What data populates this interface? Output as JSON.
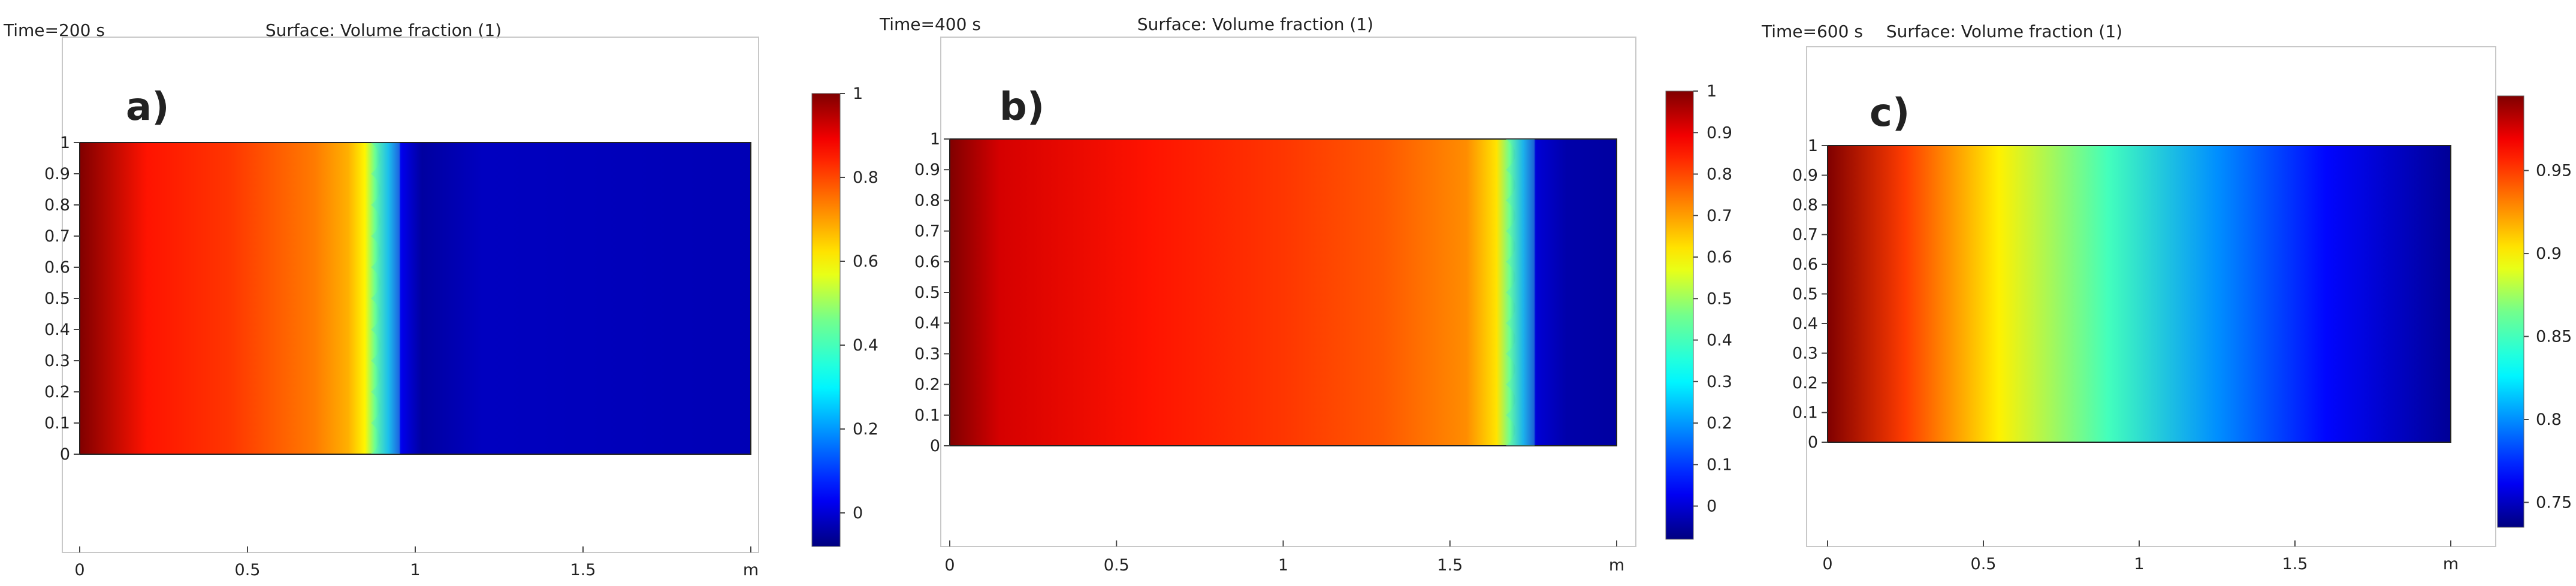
{
  "chart_data": [
    {
      "type": "heatmap",
      "panel_label": "a)",
      "time_label": "Time=200 s",
      "title": "Surface: Volume fraction (1)",
      "xticks": [
        "0",
        "0.5",
        "1",
        "1.5",
        "m"
      ],
      "yticks": [
        "0",
        "0.1",
        "0.2",
        "0.3",
        "0.4",
        "0.5",
        "0.6",
        "0.7",
        "0.8",
        "0.9",
        "1"
      ],
      "xlim": [
        0,
        2
      ],
      "ylim": [
        0,
        1
      ],
      "colorbar": {
        "range": [
          -0.08,
          1.0
        ],
        "ticks": [
          "1",
          "0.8",
          "0.6",
          "0.4",
          "0.2",
          "0"
        ],
        "tick_values": [
          1.0,
          0.8,
          0.6,
          0.4,
          0.2,
          0.0
        ],
        "colormap": "jet"
      },
      "field": {
        "x": [
          0.0,
          0.2,
          0.45,
          0.7,
          0.8,
          0.85,
          0.88,
          0.92,
          0.96,
          1.02,
          1.2,
          2.0
        ],
        "value": [
          1.0,
          0.86,
          0.82,
          0.74,
          0.68,
          0.6,
          0.45,
          0.22,
          0.02,
          -0.05,
          -0.02,
          -0.03
        ]
      },
      "front_x": 0.9
    },
    {
      "type": "heatmap",
      "panel_label": "b)",
      "time_label": "Time=400 s",
      "title": "Surface: Volume fraction (1)",
      "xticks": [
        "0",
        "0.5",
        "1",
        "1.5",
        "m"
      ],
      "yticks": [
        "0",
        "0.1",
        "0.2",
        "0.3",
        "0.4",
        "0.5",
        "0.6",
        "0.7",
        "0.8",
        "0.9",
        "1"
      ],
      "xlim": [
        0,
        2
      ],
      "ylim": [
        0,
        1
      ],
      "colorbar": {
        "range": [
          -0.08,
          1.0
        ],
        "ticks": [
          "1",
          "0.9",
          "0.8",
          "0.7",
          "0.6",
          "0.5",
          "0.4",
          "0.3",
          "0.2",
          "0.1",
          "0"
        ],
        "tick_values": [
          1.0,
          0.9,
          0.8,
          0.7,
          0.6,
          0.5,
          0.4,
          0.3,
          0.2,
          0.1,
          0.0
        ],
        "colormap": "jet"
      },
      "field": {
        "x": [
          0.0,
          0.15,
          0.6,
          1.0,
          1.3,
          1.55,
          1.64,
          1.68,
          1.72,
          1.76,
          1.85,
          2.0
        ],
        "value": [
          1.0,
          0.92,
          0.86,
          0.82,
          0.78,
          0.72,
          0.62,
          0.45,
          0.2,
          0.0,
          -0.04,
          -0.05
        ]
      },
      "front_x": 1.7
    },
    {
      "type": "heatmap",
      "panel_label": "c)",
      "time_label": "Time=600 s",
      "title": "Surface: Volume fraction (1)",
      "xticks": [
        "0",
        "0.5",
        "1",
        "1.5",
        "m"
      ],
      "yticks": [
        "0",
        "0.1",
        "0.2",
        "0.3",
        "0.4",
        "0.5",
        "0.6",
        "0.7",
        "0.8",
        "0.9",
        "1"
      ],
      "xlim": [
        0,
        2
      ],
      "ylim": [
        0,
        1
      ],
      "colorbar": {
        "range": [
          0.735,
          0.995
        ],
        "ticks": [
          "0.95",
          "0.9",
          "0.85",
          "0.8",
          "0.75"
        ],
        "tick_values": [
          0.95,
          0.9,
          0.85,
          0.8,
          0.75
        ],
        "colormap": "jet"
      },
      "field": {
        "x": [
          0.0,
          0.25,
          0.55,
          0.9,
          1.25,
          1.6,
          2.0
        ],
        "value": [
          0.995,
          0.95,
          0.9,
          0.85,
          0.8,
          0.765,
          0.74
        ]
      },
      "front_x": null
    }
  ]
}
